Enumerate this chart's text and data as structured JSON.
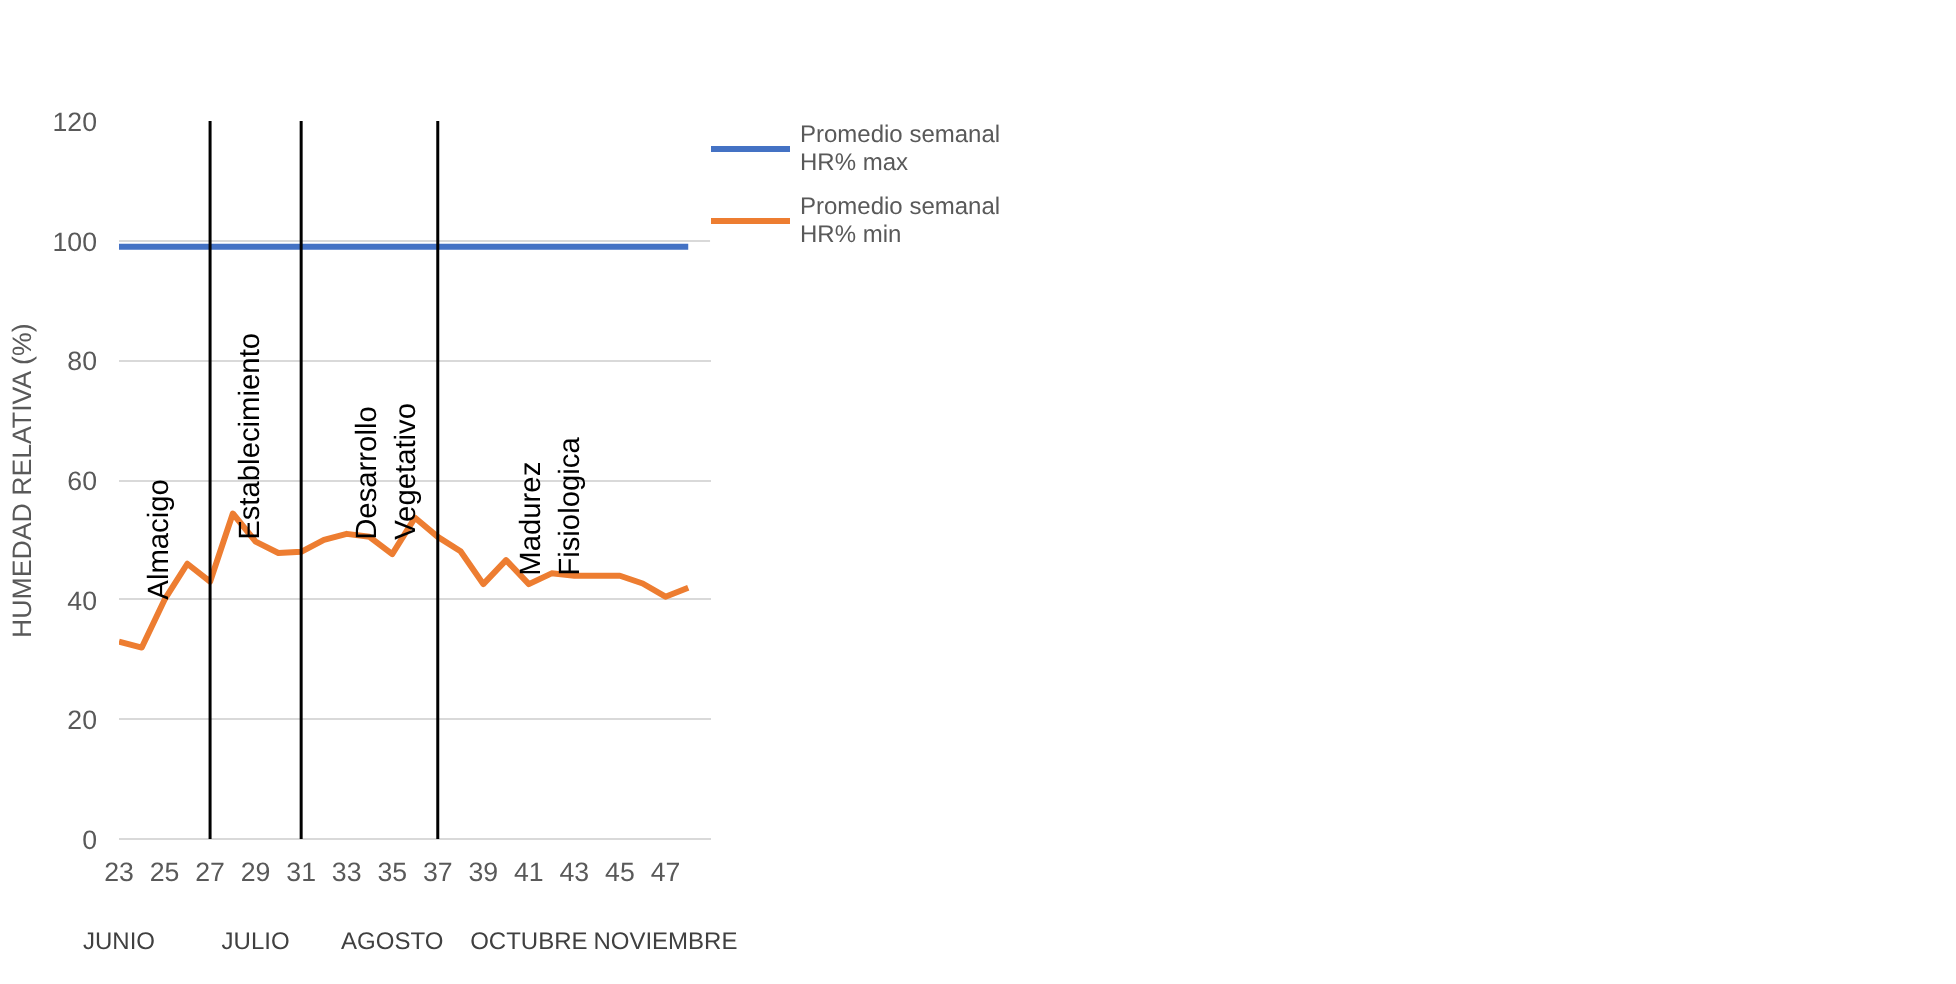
{
  "chart_data": {
    "type": "line",
    "ylabel": "HUMEDAD RELATIVA (%)",
    "x": [
      23,
      24,
      25,
      26,
      27,
      28,
      29,
      30,
      31,
      32,
      33,
      34,
      35,
      36,
      37,
      38,
      39,
      40,
      41,
      42,
      43,
      44,
      45,
      46,
      47,
      48
    ],
    "series": [
      {
        "name": "Promedio semanal HR% max",
        "color": "#4472c4",
        "values": [
          99,
          99,
          99,
          99,
          99,
          99,
          99,
          99,
          99,
          99,
          99,
          99,
          99,
          99,
          99,
          99,
          99,
          99,
          99,
          99,
          99,
          99,
          99,
          99,
          99,
          99
        ]
      },
      {
        "name": "Promedio semanal HR% min",
        "color": "#ed7d31",
        "values": [
          33,
          32,
          40,
          46,
          43,
          54.4,
          49.7,
          47.8,
          48,
          50,
          51,
          50.5,
          47.6,
          53.7,
          50.5,
          48.1,
          42.6,
          46.6,
          42.6,
          44.4,
          44,
          44,
          44,
          42.7,
          40.5,
          42
        ]
      }
    ],
    "xlim": [
      23,
      49
    ],
    "ylim": [
      0,
      120
    ],
    "xticks": [
      23,
      25,
      27,
      29,
      31,
      33,
      35,
      37,
      39,
      41,
      43,
      45,
      47
    ],
    "yticks": [
      0,
      20,
      40,
      60,
      80,
      100,
      120
    ],
    "grid": "y",
    "legend": "right",
    "marker": "none",
    "line_style": "solid",
    "ref_lines": [
      {
        "axis": "x",
        "value": 27,
        "color": "#000000"
      },
      {
        "axis": "x",
        "value": 31,
        "color": "#000000"
      },
      {
        "axis": "x",
        "value": 37,
        "color": "#000000"
      }
    ],
    "annotations": [
      {
        "text": "Almacigo",
        "x": 24.8,
        "y": 40
      },
      {
        "text": "Establecimiento",
        "x": 28.8,
        "y": 50
      },
      {
        "text": "Desarrollo\nVegetativo",
        "x": 34.8,
        "y": 50
      },
      {
        "text": "Madurez\nFisiologica",
        "x": 42,
        "y": 44
      },
      "JUNIO",
      "JULIO",
      "AGOSTO",
      "OCTUBRE",
      "NOVIEMBRE"
    ]
  }
}
